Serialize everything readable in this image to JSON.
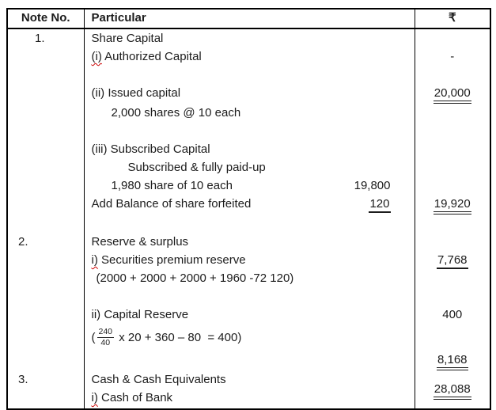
{
  "colors": {
    "border": "#000000",
    "text": "#1c1c1c",
    "background": "#ffffff",
    "spellcheck_squiggle": "#cc0000"
  },
  "table": {
    "headers": [
      "Note No.",
      "Particular",
      "₹"
    ],
    "lines": [
      {
        "note": "1.",
        "note_indent": true,
        "p": "Share Capital"
      },
      {
        "pre": "(i)",
        "p": " Authorized Capital",
        "amt": "-"
      },
      {},
      {
        "p": "(ii) Issued capital",
        "amt": "20,000",
        "au": "double"
      },
      {
        "p": "2,000 shares @ 10 each",
        "ind": "md"
      },
      {},
      {
        "p": "(iii) Subscribed Capital"
      },
      {
        "p": "Subscribed & fully paid-up",
        "ind": "lg"
      },
      {
        "p": "1,980 share of 10 each",
        "ind": "md",
        "iamt": "19,800"
      },
      {
        "p": "Add Balance of share forfeited",
        "iamt": "120",
        "iu": "single",
        "amt": "19,920",
        "au": "double"
      },
      {},
      {
        "note": "2.",
        "p": "Reserve & surplus"
      },
      {
        "pre": "i)",
        "p": " Securities premium reserve",
        "amt": "7,768",
        "au": "single"
      },
      {
        "p": "(2000 + 2000 + 2000 + 1960 -72 120)",
        "ind": "sm"
      },
      {},
      {
        "p": "ii) Capital Reserve",
        "amt": "400"
      },
      {
        "frac": {
          "open": "(",
          "num": "240",
          "den": "40",
          "rest": " x 20 + 360 – 80  = 400)"
        }
      },
      {
        "amt": "8,168",
        "au": "double"
      },
      {
        "note": "3.",
        "p": "Cash & Cash Equivalents"
      },
      {
        "pre": "i)",
        "p": " Cash of Bank",
        "amt": "28,088",
        "au": "double",
        "amt_shift": true
      }
    ]
  }
}
